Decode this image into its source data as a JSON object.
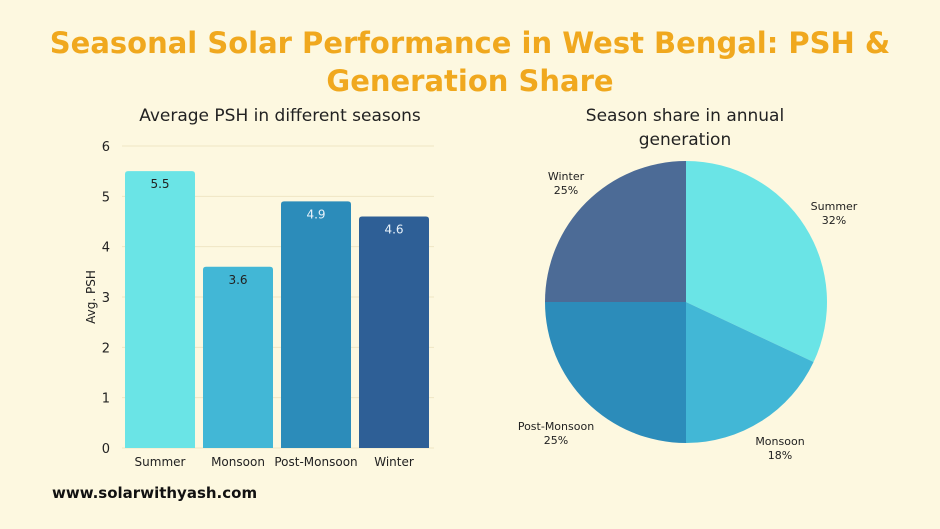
{
  "title": "Seasonal Solar Performance in West Bengal: PSH & Generation Share",
  "footer": "www.solarwithyash.com",
  "chart_data": [
    {
      "type": "bar",
      "title": "Average PSH in different seasons",
      "xlabel": "",
      "ylabel": "Avg. PSH",
      "ylim": [
        0,
        6
      ],
      "yticks": [
        0,
        1,
        2,
        3,
        4,
        5,
        6
      ],
      "grid": true,
      "categories": [
        "Summer",
        "Monsoon",
        "Post-Monsoon",
        "Winter"
      ],
      "values": [
        5.5,
        3.6,
        4.9,
        4.6
      ],
      "colors": [
        "#6ae4e6",
        "#42b7d6",
        "#2c8cba",
        "#2e5f96"
      ]
    },
    {
      "type": "pie",
      "title": "Season share in annual generation",
      "labels": [
        "Summer",
        "Monsoon",
        "Post-Monsoon",
        "Winter"
      ],
      "values": [
        32,
        18,
        25,
        25
      ],
      "value_labels": [
        "32%",
        "18%",
        "25%",
        "25%"
      ],
      "colors": [
        "#6ae4e6",
        "#42b7d6",
        "#2c8cba",
        "#4c6b96"
      ]
    }
  ]
}
